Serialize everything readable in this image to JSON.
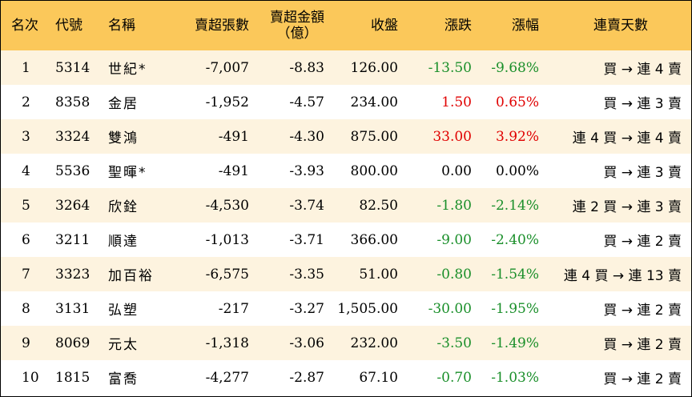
{
  "headers": {
    "rank": "名次",
    "code": "代號",
    "name": "名稱",
    "net_sell_shares": "賣超張數",
    "net_sell_amount_l1": "賣超金額",
    "net_sell_amount_l2": "（億）",
    "close": "收盤",
    "change": "漲跌",
    "change_pct": "漲幅",
    "streak_days": "連賣天數"
  },
  "colors": {
    "header_bg": "#fbc85a",
    "row_alt_bg": "#fdf3df",
    "up": "#e00000",
    "down": "#1a8f2a"
  },
  "rows": [
    {
      "rank": "1",
      "code": "5314",
      "name": "世紀*",
      "shares": "-7,007",
      "amount": "-8.83",
      "close": "126.00",
      "change": "-13.50",
      "pct": "-9.68%",
      "dir": "down",
      "streak": "買 → 連 4 賣"
    },
    {
      "rank": "2",
      "code": "8358",
      "name": "金居",
      "shares": "-1,952",
      "amount": "-4.57",
      "close": "234.00",
      "change": "1.50",
      "pct": "0.65%",
      "dir": "up",
      "streak": "買 → 連 3 賣"
    },
    {
      "rank": "3",
      "code": "3324",
      "name": "雙鴻",
      "shares": "-491",
      "amount": "-4.30",
      "close": "875.00",
      "change": "33.00",
      "pct": "3.92%",
      "dir": "up",
      "streak": "連 4 買 → 連 4 賣"
    },
    {
      "rank": "4",
      "code": "5536",
      "name": "聖暉*",
      "shares": "-491",
      "amount": "-3.93",
      "close": "800.00",
      "change": "0.00",
      "pct": "0.00%",
      "dir": "flat",
      "streak": "買 → 連 3 賣"
    },
    {
      "rank": "5",
      "code": "3264",
      "name": "欣銓",
      "shares": "-4,530",
      "amount": "-3.74",
      "close": "82.50",
      "change": "-1.80",
      "pct": "-2.14%",
      "dir": "down",
      "streak": "連 2 買 → 連 3 賣"
    },
    {
      "rank": "6",
      "code": "3211",
      "name": "順達",
      "shares": "-1,013",
      "amount": "-3.71",
      "close": "366.00",
      "change": "-9.00",
      "pct": "-2.40%",
      "dir": "down",
      "streak": "買 → 連 2 賣"
    },
    {
      "rank": "7",
      "code": "3323",
      "name": "加百裕",
      "shares": "-6,575",
      "amount": "-3.35",
      "close": "51.00",
      "change": "-0.80",
      "pct": "-1.54%",
      "dir": "down",
      "streak": "連 4 買 → 連 13 賣"
    },
    {
      "rank": "8",
      "code": "3131",
      "name": "弘塑",
      "shares": "-217",
      "amount": "-3.27",
      "close": "1,505.00",
      "change": "-30.00",
      "pct": "-1.95%",
      "dir": "down",
      "streak": "買 → 連 2 賣"
    },
    {
      "rank": "9",
      "code": "8069",
      "name": "元太",
      "shares": "-1,318",
      "amount": "-3.06",
      "close": "232.00",
      "change": "-3.50",
      "pct": "-1.49%",
      "dir": "down",
      "streak": "買 → 連 2 賣"
    },
    {
      "rank": "10",
      "code": "1815",
      "name": "富喬",
      "shares": "-4,277",
      "amount": "-2.87",
      "close": "67.10",
      "change": "-0.70",
      "pct": "-1.03%",
      "dir": "down",
      "streak": "買 → 連 2 賣"
    }
  ]
}
